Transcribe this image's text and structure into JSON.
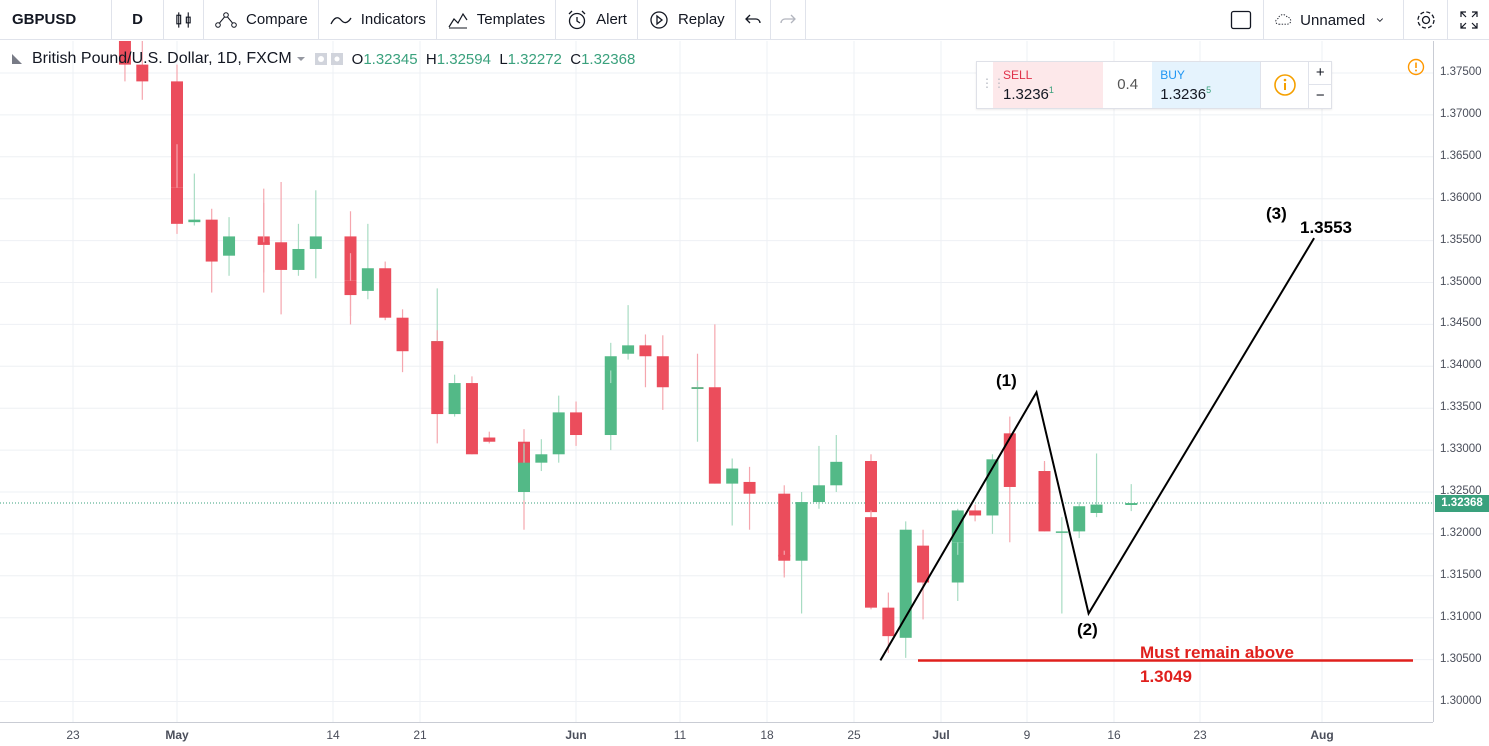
{
  "toolbar": {
    "symbol": "GBPUSD",
    "interval": "D",
    "compare": "Compare",
    "indicators": "Indicators",
    "templates": "Templates",
    "alert": "Alert",
    "replay": "Replay",
    "layout_name": "Unnamed"
  },
  "legend": {
    "title": "British Pound/U.S. Dollar, 1D, FXCM",
    "o_label": "O",
    "o": "1.32345",
    "h_label": "H",
    "h": "1.32594",
    "l_label": "L",
    "l": "1.32272",
    "c_label": "C",
    "c": "1.32368"
  },
  "trade": {
    "sell_label": "SELL",
    "sell_price": "1.3236",
    "sell_sup": "1",
    "spread": "0.4",
    "buy_label": "BUY",
    "buy_price": "1.3236",
    "buy_sup": "5"
  },
  "price_axis": {
    "ticks": [
      "1.37500",
      "1.37000",
      "1.36500",
      "1.36000",
      "1.35500",
      "1.35000",
      "1.34500",
      "1.34000",
      "1.33500",
      "1.33000",
      "1.32500",
      "1.32000",
      "1.31500",
      "1.31000",
      "1.30500",
      "1.30000"
    ],
    "current": "1.32368"
  },
  "time_axis": {
    "ticks": [
      "23",
      "May",
      "14",
      "21",
      "Jun",
      "11",
      "18",
      "25",
      "Jul",
      "9",
      "16",
      "23",
      "Aug"
    ]
  },
  "annotations": {
    "wave1": "(1)",
    "wave2": "(2)",
    "wave3": "(3)",
    "target": "1.3553",
    "support_text": "Must remain above",
    "support_value": "1.3049"
  },
  "colors": {
    "up": "#53b987",
    "down": "#eb4d5c",
    "support": "#e0201d"
  },
  "chart_data": {
    "type": "candlestick",
    "symbol": "GBPUSD",
    "ylim": [
      1.2975,
      1.378
    ],
    "candles": [
      {
        "d": "Apr 26",
        "o": 1.393,
        "h": 1.395,
        "l": 1.374,
        "c": 1.376
      },
      {
        "d": "Apr 27",
        "o": 1.376,
        "h": 1.379,
        "l": 1.3718,
        "c": 1.374
      },
      {
        "d": "Apr 30",
        "o": 1.374,
        "h": 1.376,
        "l": 1.3608,
        "c": 1.3613
      },
      {
        "d": "May 1",
        "o": 1.3613,
        "h": 1.3665,
        "l": 1.3558,
        "c": 1.357
      },
      {
        "d": "May 2",
        "o": 1.3572,
        "h": 1.363,
        "l": 1.3568,
        "c": 1.3575
      },
      {
        "d": "May 3",
        "o": 1.3575,
        "h": 1.3588,
        "l": 1.3488,
        "c": 1.3525
      },
      {
        "d": "May 4",
        "o": 1.3532,
        "h": 1.3578,
        "l": 1.3508,
        "c": 1.3555
      },
      {
        "d": "May 7",
        "o": 1.3555,
        "h": 1.3595,
        "l": 1.3488,
        "c": 1.3545
      },
      {
        "d": "May 8",
        "o": 1.3548,
        "h": 1.3612,
        "l": 1.3512,
        "c": 1.3545
      },
      {
        "d": "May 9",
        "o": 1.3548,
        "h": 1.362,
        "l": 1.3462,
        "c": 1.3515
      },
      {
        "d": "May 10",
        "o": 1.3515,
        "h": 1.357,
        "l": 1.3508,
        "c": 1.354
      },
      {
        "d": "May 11",
        "o": 1.354,
        "h": 1.361,
        "l": 1.3505,
        "c": 1.3555
      },
      {
        "d": "May 14",
        "o": 1.3555,
        "h": 1.3585,
        "l": 1.345,
        "c": 1.3502
      },
      {
        "d": "May 15",
        "o": 1.3502,
        "h": 1.3535,
        "l": 1.346,
        "c": 1.3485
      },
      {
        "d": "May 16",
        "o": 1.349,
        "h": 1.357,
        "l": 1.348,
        "c": 1.3517
      },
      {
        "d": "May 17",
        "o": 1.3517,
        "h": 1.3525,
        "l": 1.3455,
        "c": 1.3458
      },
      {
        "d": "May 18",
        "o": 1.3458,
        "h": 1.3468,
        "l": 1.3393,
        "c": 1.3418
      },
      {
        "d": "May 21",
        "o": 1.342,
        "h": 1.3493,
        "l": 1.3418,
        "c": 1.343
      },
      {
        "d": "May 22",
        "o": 1.343,
        "h": 1.3443,
        "l": 1.3308,
        "c": 1.3343
      },
      {
        "d": "May 23",
        "o": 1.3343,
        "h": 1.339,
        "l": 1.334,
        "c": 1.338
      },
      {
        "d": "May 24",
        "o": 1.338,
        "h": 1.3388,
        "l": 1.3295,
        "c": 1.3295
      },
      {
        "d": "May 25",
        "o": 1.3315,
        "h": 1.3322,
        "l": 1.3308,
        "c": 1.331
      },
      {
        "d": "May 28",
        "o": 1.331,
        "h": 1.3325,
        "l": 1.3205,
        "c": 1.3252
      },
      {
        "d": "May 29",
        "o": 1.325,
        "h": 1.3308,
        "l": 1.324,
        "c": 1.3285
      },
      {
        "d": "May 30",
        "o": 1.3285,
        "h": 1.3313,
        "l": 1.3275,
        "c": 1.3295
      },
      {
        "d": "May 31",
        "o": 1.3295,
        "h": 1.3365,
        "l": 1.3285,
        "c": 1.3345
      },
      {
        "d": "Jun 1",
        "o": 1.3345,
        "h": 1.3358,
        "l": 1.3305,
        "c": 1.3318
      },
      {
        "d": "Jun 4",
        "o": 1.3318,
        "h": 1.3405,
        "l": 1.33,
        "c": 1.3395
      },
      {
        "d": "Jun 5",
        "o": 1.3395,
        "h": 1.3428,
        "l": 1.338,
        "c": 1.3412
      },
      {
        "d": "Jun 6",
        "o": 1.3415,
        "h": 1.3473,
        "l": 1.3408,
        "c": 1.3425
      },
      {
        "d": "Jun 7",
        "o": 1.3425,
        "h": 1.3438,
        "l": 1.3375,
        "c": 1.3412
      },
      {
        "d": "Jun 8",
        "o": 1.3412,
        "h": 1.3437,
        "l": 1.3348,
        "c": 1.3375
      },
      {
        "d": "Jun 11",
        "o": 1.3375,
        "h": 1.3415,
        "l": 1.3348,
        "c": 1.3373
      },
      {
        "d": "Jun 12",
        "o": 1.3373,
        "h": 1.3383,
        "l": 1.331,
        "c": 1.3375
      },
      {
        "d": "Jun 13",
        "o": 1.3375,
        "h": 1.345,
        "l": 1.326,
        "c": 1.326
      },
      {
        "d": "Jun 14",
        "o": 1.326,
        "h": 1.329,
        "l": 1.321,
        "c": 1.3278
      },
      {
        "d": "Jun 15",
        "o": 1.3262,
        "h": 1.328,
        "l": 1.3205,
        "c": 1.3248
      },
      {
        "d": "Jun 18",
        "o": 1.3248,
        "h": 1.3258,
        "l": 1.3153,
        "c": 1.3173
      },
      {
        "d": "Jun 19",
        "o": 1.3175,
        "h": 1.318,
        "l": 1.3148,
        "c": 1.3168
      },
      {
        "d": "Jun 20",
        "o": 1.3168,
        "h": 1.325,
        "l": 1.3105,
        "c": 1.3238
      },
      {
        "d": "Jun 21",
        "o": 1.3238,
        "h": 1.3305,
        "l": 1.323,
        "c": 1.3258
      },
      {
        "d": "Jun 22",
        "o": 1.3258,
        "h": 1.3318,
        "l": 1.325,
        "c": 1.3286
      },
      {
        "d": "Jun 25",
        "o": 1.3287,
        "h": 1.3295,
        "l": 1.3218,
        "c": 1.3226
      },
      {
        "d": "Jun 26",
        "o": 1.322,
        "h": 1.3228,
        "l": 1.311,
        "c": 1.3112
      },
      {
        "d": "Jun 27",
        "o": 1.3112,
        "h": 1.313,
        "l": 1.3058,
        "c": 1.3078
      },
      {
        "d": "Jun 28",
        "o": 1.3076,
        "h": 1.3215,
        "l": 1.3052,
        "c": 1.3205
      },
      {
        "d": "Jun 29",
        "o": 1.3186,
        "h": 1.3205,
        "l": 1.3098,
        "c": 1.3142
      },
      {
        "d": "Jul 2",
        "o": 1.3142,
        "h": 1.32,
        "l": 1.312,
        "c": 1.319
      },
      {
        "d": "Jul 3",
        "o": 1.319,
        "h": 1.323,
        "l": 1.3175,
        "c": 1.3228
      },
      {
        "d": "Jul 4",
        "o": 1.3228,
        "h": 1.3235,
        "l": 1.3215,
        "c": 1.3222
      },
      {
        "d": "Jul 5",
        "o": 1.3222,
        "h": 1.3295,
        "l": 1.32,
        "c": 1.3289
      },
      {
        "d": "Jul 6",
        "o": 1.332,
        "h": 1.334,
        "l": 1.319,
        "c": 1.3256
      },
      {
        "d": "Jul 9",
        "o": 1.3256,
        "h": 1.3285,
        "l": 1.325,
        "c": 1.3275
      },
      {
        "d": "Jul 10",
        "o": 1.3275,
        "h": 1.3287,
        "l": 1.3203,
        "c": 1.3203
      },
      {
        "d": "Jul 11",
        "o": 1.3203,
        "h": 1.322,
        "l": 1.3105,
        "c": 1.3203
      },
      {
        "d": "Jul 12",
        "o": 1.3203,
        "h": 1.3238,
        "l": 1.3195,
        "c": 1.3233
      },
      {
        "d": "Jul 13",
        "o": 1.3225,
        "h": 1.3296,
        "l": 1.322,
        "c": 1.3235
      },
      {
        "d": "Jul 16",
        "o": 1.32345,
        "h": 1.32594,
        "l": 1.32272,
        "c": 1.32368
      }
    ],
    "lines": [
      {
        "label": "wave",
        "points": [
          [
            "Jun 27",
            1.3049
          ],
          [
            "Jul 9",
            1.3369
          ],
          [
            "Jul 13",
            1.3105
          ],
          [
            "Aug 1",
            1.3553
          ]
        ]
      },
      {
        "label": "support",
        "value": 1.3049
      }
    ]
  }
}
